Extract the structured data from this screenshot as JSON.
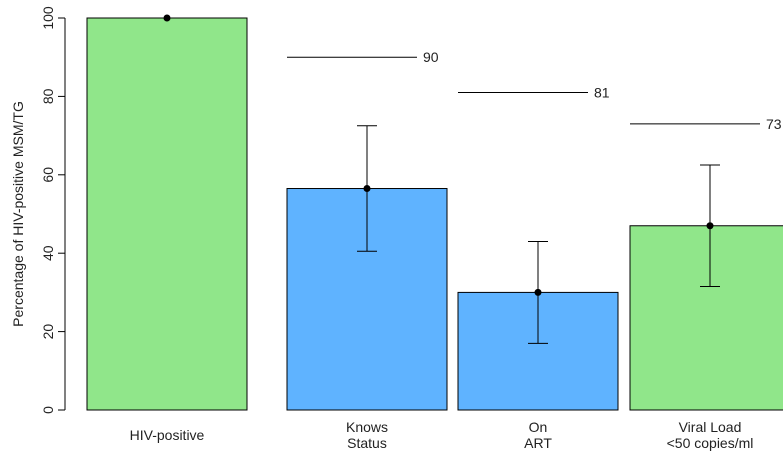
{
  "chart_data": {
    "type": "bar",
    "ylabel": "Percentage of HIV-positive MSM/TG",
    "ylim": [
      0,
      100
    ],
    "yticks": [
      "0",
      "20",
      "40",
      "60",
      "80",
      "100"
    ],
    "categories": [
      [
        "HIV-positive"
      ],
      [
        "Knows",
        "Status"
      ],
      [
        "On",
        "ART"
      ],
      [
        "Viral Load",
        "<50 copies/ml"
      ]
    ],
    "values": [
      100,
      56.5,
      30,
      47
    ],
    "error_low": [
      null,
      40.5,
      17,
      31.5
    ],
    "error_high": [
      null,
      72.5,
      43,
      62.5
    ],
    "bar_colors": [
      "#90e68a",
      "#5fb3ff",
      "#5fb3ff",
      "#90e68a"
    ],
    "targets": [
      {
        "category_index": 1,
        "value": 90,
        "label": "90"
      },
      {
        "category_index": 2,
        "value": 81,
        "label": "81"
      },
      {
        "category_index": 3,
        "value": 73,
        "label": "73"
      }
    ],
    "grid": false,
    "legend": "none"
  }
}
